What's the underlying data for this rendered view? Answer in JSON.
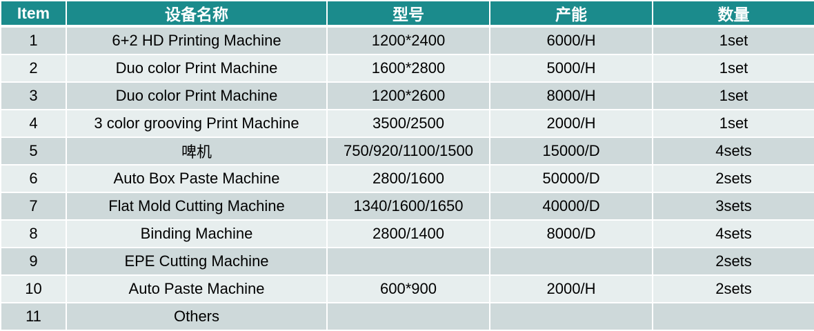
{
  "colors": {
    "header": "#1B8B8C",
    "row_odd": "#CED9DA",
    "row_even": "#E7EEEE"
  },
  "headers": [
    "Item",
    "设备名称",
    "型号",
    "产能",
    "数量"
  ],
  "rows": [
    [
      "1",
      "6+2 HD Printing Machine",
      "1200*2400",
      "6000/H",
      "1set"
    ],
    [
      "2",
      "Duo color Print Machine",
      "1600*2800",
      "5000/H",
      "1set"
    ],
    [
      "3",
      "Duo color Print Machine",
      "1200*2600",
      "8000/H",
      "1set"
    ],
    [
      "4",
      "3 color grooving Print Machine",
      "3500/2500",
      "2000/H",
      "1set"
    ],
    [
      "5",
      "啤机",
      "750/920/1100/1500",
      "15000/D",
      "4sets"
    ],
    [
      "6",
      "Auto Box Paste Machine",
      "2800/1600",
      "50000/D",
      "2sets"
    ],
    [
      "7",
      "Flat Mold Cutting Machine",
      "1340/1600/1650",
      "40000/D",
      "3sets"
    ],
    [
      "8",
      "Binding Machine",
      "2800/1400",
      "8000/D",
      "4sets"
    ],
    [
      "9",
      "EPE Cutting Machine",
      "",
      "",
      "2sets"
    ],
    [
      "10",
      "Auto Paste Machine",
      "600*900",
      "2000/H",
      "2sets"
    ],
    [
      "11",
      "Others",
      "",
      "",
      ""
    ]
  ]
}
